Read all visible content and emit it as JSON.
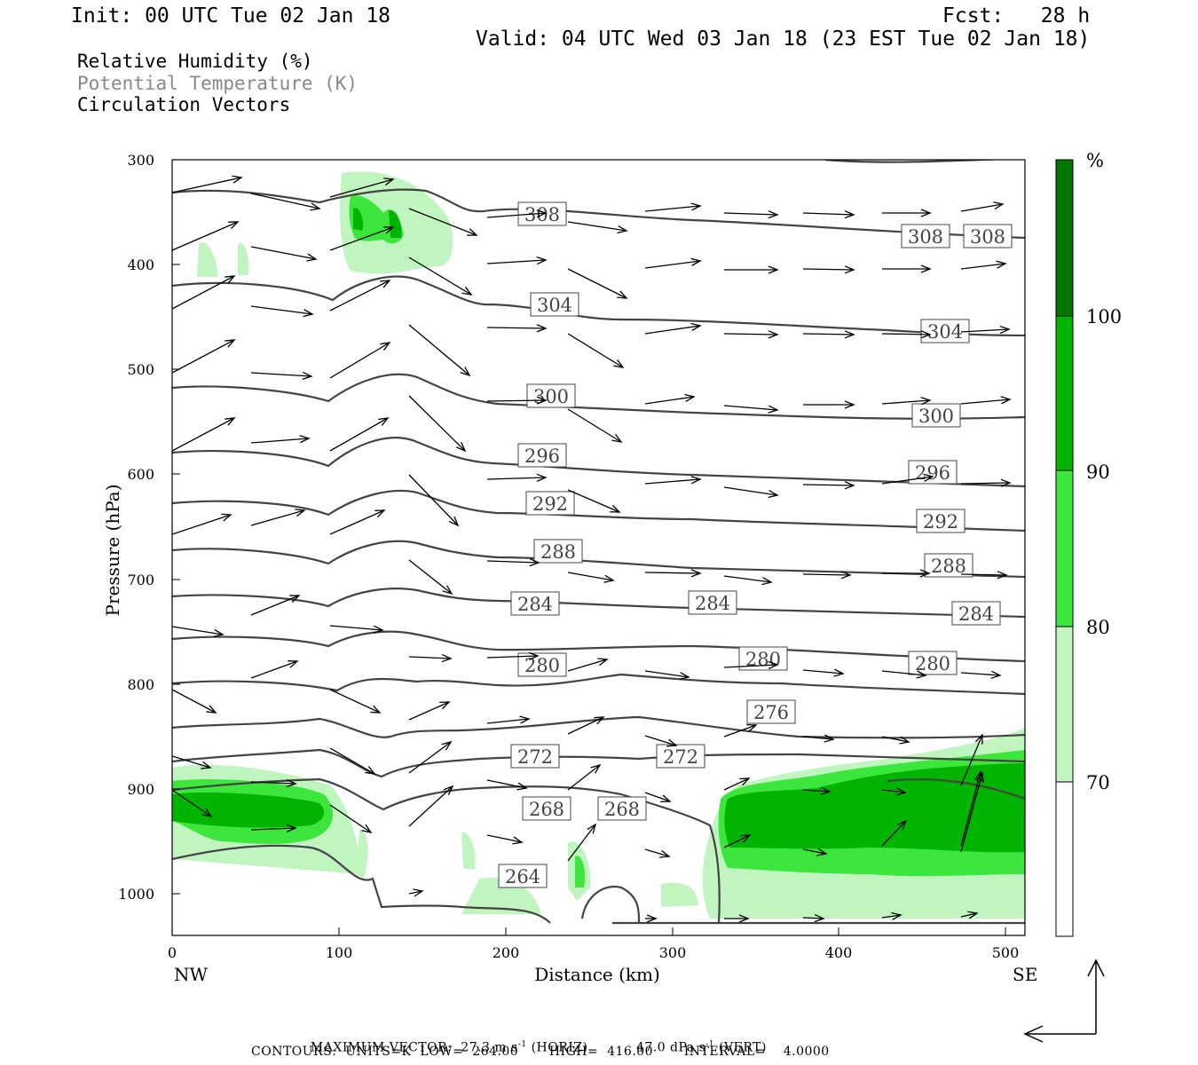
{
  "header": {
    "init": "Init: 00 UTC Tue 02 Jan 18",
    "fcst": "Fcst:   28 h",
    "valid": "Valid: 04 UTC Wed 03 Jan 18 (23 EST Tue 02 Jan 18)"
  },
  "legend": {
    "rh": "Relative Humidity (%)",
    "theta": "Potential Temperature (K)",
    "vectors": "Circulation Vectors"
  },
  "footer": {
    "max_vector_label": "MAXIMUM VECTOR:",
    "horiz_value": "27.3 m s",
    "horiz_tag": " (HORIZ)",
    "vert_value": "47.0 dPa s",
    "vert_tag": " (VERT)",
    "unit_exp": "-1",
    "contours": "CONTOURS:  UNITS=K  LOW=  264.00       HIGH=  416.00       INTERVAL=    4.0000"
  },
  "colors": {
    "rh70": "#c0f5c0",
    "rh80": "#3ce63c",
    "rh90": "#00b400",
    "rh100": "#007800",
    "contour": "#444444",
    "contour_label": "#444444",
    "vector": "#000000"
  },
  "chart_data": {
    "type": "cross-section",
    "xlabel": "Distance (km)",
    "ylabel": "Pressure (hPa)",
    "xlim": [
      0,
      512
    ],
    "ylim": [
      1040,
      300
    ],
    "y_scale": "linear-inverted",
    "x_ticks": [
      "0",
      "100",
      "200",
      "300",
      "400",
      "500"
    ],
    "y_ticks": [
      "300",
      "400",
      "500",
      "600",
      "700",
      "800",
      "900",
      "1000"
    ],
    "x_end_labels": {
      "left": "NW",
      "right": "SE"
    },
    "colorbar": {
      "unit": "%",
      "levels": [
        "70",
        "80",
        "90",
        "100"
      ]
    },
    "theta_contour_labels": [
      {
        "value": "308",
        "x": [
          222,
          450,
          490
        ],
        "p": [
          350,
          357,
          358
        ]
      },
      {
        "value": "304",
        "x": [
          229,
          461
        ],
        "p": [
          438,
          463
        ]
      },
      {
        "value": "300",
        "x": [
          227,
          457
        ],
        "p": [
          524,
          544
        ]
      },
      {
        "value": "296",
        "x": [
          222,
          455
        ],
        "p": [
          580,
          598
        ]
      },
      {
        "value": "292",
        "x": [
          227,
          460
        ],
        "p": [
          627,
          645
        ]
      },
      {
        "value": "288",
        "x": [
          232,
          465
        ],
        "p": [
          674,
          690
        ]
      },
      {
        "value": "284",
        "x": [
          218,
          325,
          482
        ],
        "p": [
          728,
          727,
          746
        ]
      },
      {
        "value": "280",
        "x": [
          222,
          354,
          458
        ],
        "p": [
          784,
          778,
          782
        ]
      },
      {
        "value": "276",
        "x": [
          361
        ],
        "p": [
          829
        ]
      },
      {
        "value": "272",
        "x": [
          218,
          306
        ],
        "p": [
          875,
          874
        ]
      },
      {
        "value": "268",
        "x": [
          224,
          269
        ],
        "p": [
          924,
          924
        ]
      },
      {
        "value": "264",
        "x": [
          210
        ],
        "p": [
          985
        ]
      }
    ]
  }
}
